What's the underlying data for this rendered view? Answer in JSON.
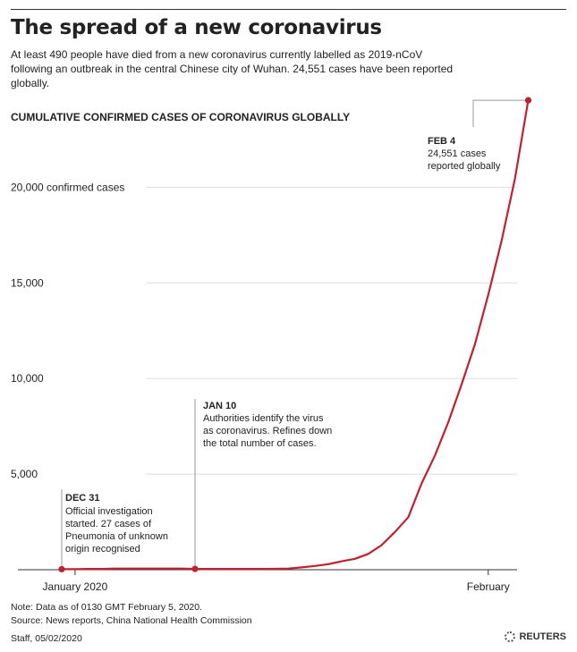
{
  "header": {
    "title": "The spread of a new coronavirus",
    "subtitle": "At least 490 people have died from a new coronavirus currently labelled as 2019-nCoV following an outbreak in the central Chinese city of Wuhan. 24,551 cases have been reported globally."
  },
  "chart_heading": "CUMULATIVE CONFIRMED CASES OF CORONAVIRUS GLOBALLY",
  "chart_data": {
    "type": "line",
    "title": "CUMULATIVE CONFIRMED CASES OF CORONAVIRUS GLOBALLY",
    "xlabel": "",
    "ylabel": "",
    "x_unit": "date",
    "ylim": [
      0,
      25000
    ],
    "yticks": [
      {
        "value": 5000,
        "label": "5,000"
      },
      {
        "value": 10000,
        "label": "10,000"
      },
      {
        "value": 15000,
        "label": "15,000"
      },
      {
        "value": 20000,
        "label": "20,000 confirmed cases"
      }
    ],
    "xticks": [
      {
        "date": "2020-01-01",
        "label": "January 2020"
      },
      {
        "date": "2020-02-01",
        "label": "February"
      }
    ],
    "grid": "horizontal",
    "line_color": "#c0202f",
    "series": [
      {
        "x": [
          "2019-12-31",
          "2020-01-01",
          "2020-01-02",
          "2020-01-03",
          "2020-01-04",
          "2020-01-05",
          "2020-01-06",
          "2020-01-07",
          "2020-01-08",
          "2020-01-09",
          "2020-01-10",
          "2020-01-11",
          "2020-01-12",
          "2020-01-13",
          "2020-01-14",
          "2020-01-15",
          "2020-01-16",
          "2020-01-17",
          "2020-01-18",
          "2020-01-19",
          "2020-01-20",
          "2020-01-21",
          "2020-01-22",
          "2020-01-23",
          "2020-01-24",
          "2020-01-25",
          "2020-01-26",
          "2020-01-27",
          "2020-01-28",
          "2020-01-29",
          "2020-01-30",
          "2020-01-31",
          "2020-02-01",
          "2020-02-02",
          "2020-02-03",
          "2020-02-04"
        ],
        "values": [
          27,
          27,
          44,
          44,
          59,
          59,
          59,
          59,
          59,
          59,
          41,
          41,
          41,
          41,
          41,
          41,
          45,
          62,
          121,
          198,
          291,
          440,
          571,
          830,
          1287,
          1975,
          2744,
          4515,
          5974,
          7711,
          9692,
          11791,
          14380,
          17205,
          20438,
          24551
        ]
      }
    ],
    "annotations": [
      {
        "date": "2019-12-31",
        "value": 27,
        "heading": "DEC 31",
        "text": [
          "Official investigation",
          "started. 27 cases of",
          "Pneumonia of unknown",
          "origin recognised"
        ]
      },
      {
        "date": "2020-01-10",
        "value": 41,
        "heading": "JAN 10",
        "text": [
          "Authorities identify the virus",
          "as coronavirus. Refines down",
          "the total number of cases."
        ]
      },
      {
        "date": "2020-02-04",
        "value": 24551,
        "heading": "FEB 4",
        "text": [
          "24,551 cases",
          "reported globally"
        ]
      }
    ]
  },
  "footer": {
    "note": "Note: Data as of 0130 GMT February 5, 2020.",
    "source": "Source: News reports, China National Health Commission",
    "credit": "Staff,  05/02/2020",
    "brand": "REUTERS"
  }
}
